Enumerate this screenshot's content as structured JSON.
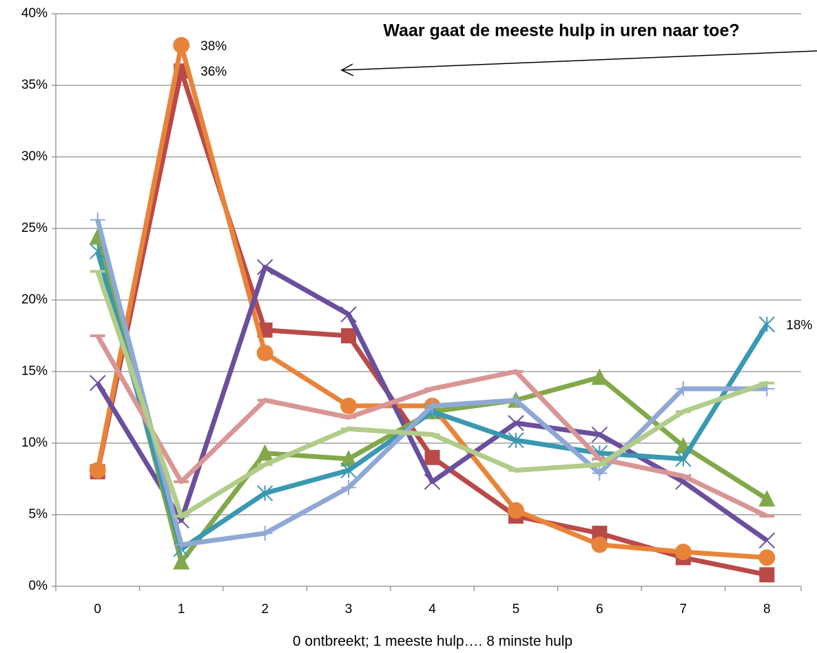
{
  "chart_data": {
    "type": "line",
    "title": "Waar gaat de meeste hulp in uren naar toe?",
    "x_label": "0 ontbreekt; 1 meeste hulp…. 8 minste hulp",
    "categories": [
      "0",
      "1",
      "2",
      "3",
      "4",
      "5",
      "6",
      "7",
      "8"
    ],
    "ylim": [
      0,
      40
    ],
    "yticks": [
      {
        "value": 0,
        "label": "0%"
      },
      {
        "value": 5,
        "label": "5%"
      },
      {
        "value": 10,
        "label": "10%"
      },
      {
        "value": 15,
        "label": "15%"
      },
      {
        "value": 20,
        "label": "20%"
      },
      {
        "value": 25,
        "label": "25%"
      },
      {
        "value": 30,
        "label": "30%"
      },
      {
        "value": 35,
        "label": "35%"
      },
      {
        "value": 40,
        "label": "40%"
      }
    ],
    "grid": true,
    "series": [
      {
        "color": "#b94a48",
        "marker": "square",
        "values": [
          8.0,
          36.0,
          17.9,
          17.5,
          9.0,
          4.9,
          3.7,
          2.0,
          0.8
        ],
        "value_labels": [
          null,
          "36%",
          null,
          null,
          null,
          null,
          null,
          null,
          null
        ]
      },
      {
        "color": "#e8843a",
        "marker": "circle",
        "values": [
          8.1,
          37.8,
          16.3,
          12.6,
          12.6,
          5.3,
          2.9,
          2.4,
          2.0
        ],
        "value_labels": [
          null,
          "38%",
          null,
          null,
          null,
          null,
          null,
          null,
          null
        ]
      },
      {
        "color": "#6a4f9c",
        "marker": "x",
        "values": [
          14.2,
          4.6,
          22.3,
          19.0,
          7.3,
          11.4,
          10.6,
          7.3,
          3.2
        ]
      },
      {
        "color": "#82a84a",
        "marker": "triangle",
        "values": [
          24.4,
          1.7,
          9.3,
          8.9,
          12.2,
          13.0,
          14.6,
          9.8,
          6.1
        ]
      },
      {
        "color": "#3a98b0",
        "marker": "star",
        "values": [
          23.4,
          2.6,
          6.5,
          8.1,
          12.2,
          10.2,
          9.3,
          8.9,
          18.3
        ],
        "value_labels": [
          null,
          null,
          null,
          null,
          null,
          null,
          null,
          null,
          "18%"
        ]
      },
      {
        "color": "#8fa9d4",
        "marker": "plus",
        "values": [
          25.6,
          2.9,
          3.7,
          6.9,
          12.6,
          13.0,
          7.9,
          13.8,
          13.8
        ]
      },
      {
        "color": "#d99694",
        "marker": "dash",
        "values": [
          17.5,
          7.3,
          13.0,
          11.8,
          13.8,
          15.0,
          8.9,
          7.7,
          4.9
        ]
      },
      {
        "color": "#b2cc8a",
        "marker": "dash",
        "values": [
          22.0,
          4.9,
          8.5,
          11.0,
          10.6,
          8.1,
          8.5,
          12.2,
          14.2
        ]
      }
    ]
  }
}
